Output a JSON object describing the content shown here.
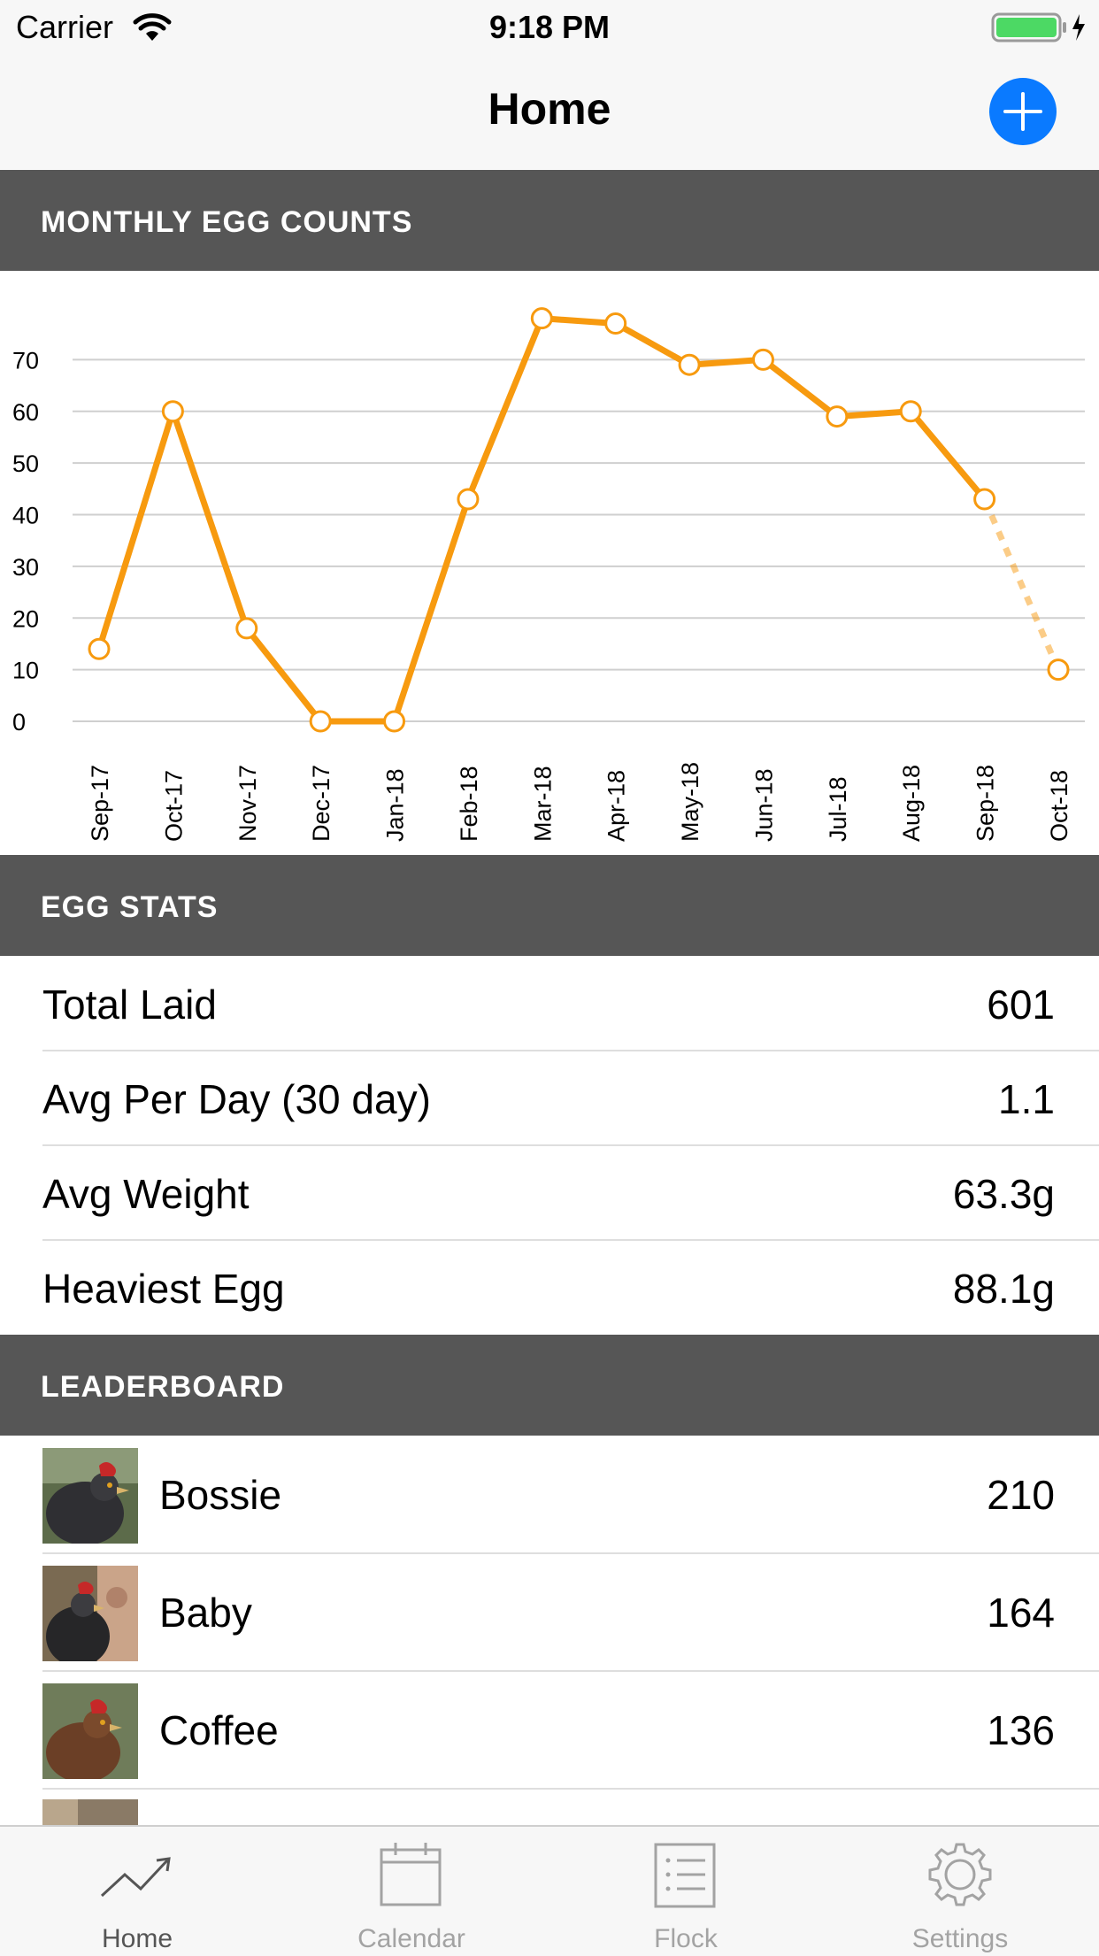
{
  "status_bar": {
    "carrier": "Carrier",
    "time": "9:18 PM"
  },
  "nav": {
    "title": "Home",
    "add_icon": "plus-icon"
  },
  "sections": {
    "chart_header": "MONTHLY EGG COUNTS",
    "stats_header": "EGG STATS",
    "leaderboard_header": "LEADERBOARD"
  },
  "chart_data": {
    "type": "line",
    "categories": [
      "Sep-17",
      "Oct-17",
      "Nov-17",
      "Dec-17",
      "Jan-18",
      "Feb-18",
      "Mar-18",
      "Apr-18",
      "May-18",
      "Jun-18",
      "Jul-18",
      "Aug-18",
      "Sep-18",
      "Oct-18"
    ],
    "values": [
      14,
      60,
      18,
      0,
      0,
      43,
      78,
      77,
      69,
      70,
      59,
      60,
      43,
      10
    ],
    "projected_last_segment": true,
    "yticks": [
      0,
      10,
      20,
      30,
      40,
      50,
      60,
      70
    ],
    "ylim": [
      0,
      80
    ],
    "grid": true,
    "line_color": "#f79a0f"
  },
  "stats": [
    {
      "label": "Total Laid",
      "value": "601"
    },
    {
      "label": "Avg Per Day (30 day)",
      "value": "1.1"
    },
    {
      "label": "Avg Weight",
      "value": "63.3g"
    },
    {
      "label": "Heaviest Egg",
      "value": "88.1g"
    }
  ],
  "leaderboard": [
    {
      "name": "Bossie",
      "count": "210"
    },
    {
      "name": "Baby",
      "count": "164"
    },
    {
      "name": "Coffee",
      "count": "136"
    }
  ],
  "tabs": [
    {
      "label": "Home",
      "icon": "trend-line-icon",
      "active": true
    },
    {
      "label": "Calendar",
      "icon": "calendar-icon",
      "active": false
    },
    {
      "label": "Flock",
      "icon": "list-icon",
      "active": false
    },
    {
      "label": "Settings",
      "icon": "gear-icon",
      "active": false
    }
  ],
  "colors": {
    "accent": "#0a7aff",
    "chart_line": "#f79a0f",
    "section_bg": "#565656"
  }
}
